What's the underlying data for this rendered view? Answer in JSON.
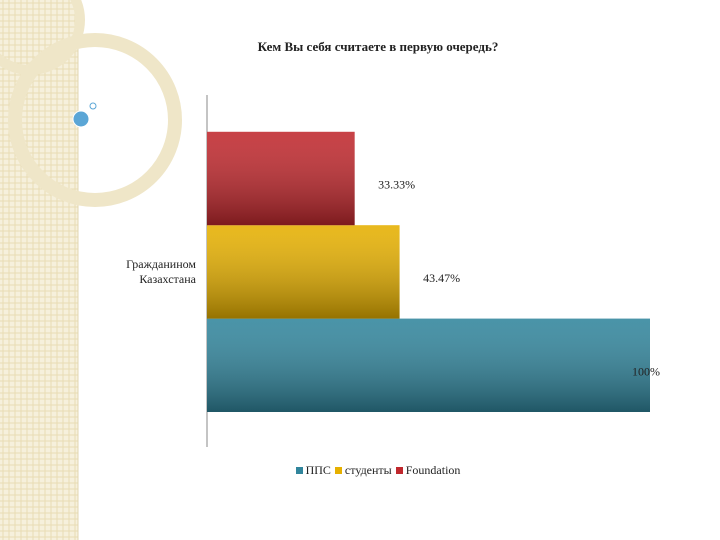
{
  "chart_data": {
    "type": "bar",
    "orientation": "horizontal",
    "title": "Кем Вы себя считаете в первую очередь?",
    "categories": [
      "Гражданином Казахстана"
    ],
    "series": [
      {
        "name": "ППС",
        "color": "#31859c",
        "values": [
          100
        ],
        "value_labels": [
          "100%"
        ]
      },
      {
        "name": "студенты",
        "color": "#e6b000",
        "values": [
          43.47
        ],
        "value_labels": [
          "43.47%"
        ]
      },
      {
        "name": "Foundation",
        "color": "#c0282d",
        "values": [
          33.33
        ],
        "value_labels": [
          "33.33%"
        ]
      }
    ],
    "legend": "bottom"
  }
}
